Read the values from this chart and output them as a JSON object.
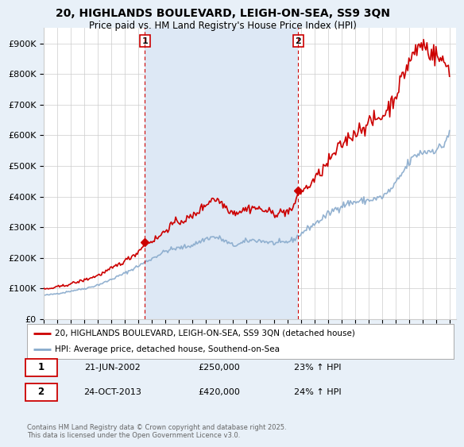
{
  "title": "20, HIGHLANDS BOULEVARD, LEIGH-ON-SEA, SS9 3QN",
  "subtitle": "Price paid vs. HM Land Registry's House Price Index (HPI)",
  "legend_entries": [
    "20, HIGHLANDS BOULEVARD, LEIGH-ON-SEA, SS9 3QN (detached house)",
    "HPI: Average price, detached house, Southend-on-Sea"
  ],
  "transaction1_label": "1",
  "transaction1_date": "21-JUN-2002",
  "transaction1_price": "£250,000",
  "transaction1_hpi": "23% ↑ HPI",
  "transaction2_label": "2",
  "transaction2_date": "24-OCT-2013",
  "transaction2_price": "£420,000",
  "transaction2_hpi": "24% ↑ HPI",
  "footer": "Contains HM Land Registry data © Crown copyright and database right 2025.\nThis data is licensed under the Open Government Licence v3.0.",
  "line1_color": "#cc0000",
  "line2_color": "#88aacc",
  "shade_color": "#dde8f5",
  "background_color": "#e8f0f8",
  "plot_bg_color": "#ffffff",
  "vline_color": "#cc0000",
  "ylim": [
    0,
    950000
  ],
  "yticks": [
    0,
    100000,
    200000,
    300000,
    400000,
    500000,
    600000,
    700000,
    800000,
    900000
  ],
  "ytick_labels": [
    "£0",
    "£100K",
    "£200K",
    "£300K",
    "£400K",
    "£500K",
    "£600K",
    "£700K",
    "£800K",
    "£900K"
  ],
  "sale1_x": 2002.47,
  "sale1_y": 250000,
  "sale2_x": 2013.81,
  "sale2_y": 420000,
  "xlim_left": 1995.0,
  "xlim_right": 2025.5
}
